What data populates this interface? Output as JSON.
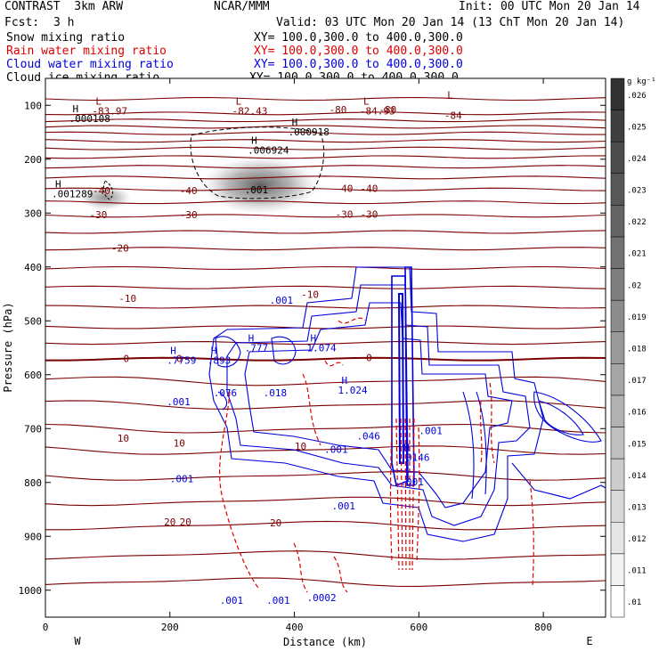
{
  "header": {
    "model": "CONTRAST  3km ARW",
    "center": "NCAR/MMM",
    "init": "Init: 00 UTC Mon 20 Jan 14",
    "fcst_label": "Fcst:",
    "fcst_value": "3 h",
    "valid": "Valid: 03 UTC Mon 20 Jan 14 (13 ChT Mon 20 Jan 14)",
    "legend": [
      {
        "text": "Snow mixing ratio",
        "xy": "XY= 100.0,300.0 to 400.0,300.0",
        "color": "#000000"
      },
      {
        "text": "Rain water mixing ratio",
        "xy": "XY= 100.0,300.0 to 400.0,300.0",
        "color": "#e00000"
      },
      {
        "text": "Cloud water mixing ratio",
        "xy": "XY= 100.0,300.0 to 400.0,300.0",
        "color": "#0000dd"
      },
      {
        "text": "Cloud ice mixing ratio",
        "xy": "XY= 100.0,300.0 to 400.0,300.0",
        "color": "#000000"
      }
    ]
  },
  "chart_data": {
    "type": "cross-section",
    "xlabel": "Distance (km)",
    "ylabel": "Pressure (hPa)",
    "xlim": [
      0,
      900
    ],
    "ylim": [
      1050,
      50
    ],
    "xticks": [
      0,
      200,
      400,
      600,
      800
    ],
    "yticks": [
      100,
      200,
      300,
      400,
      500,
      600,
      700,
      800,
      900,
      1000
    ],
    "endpoints": {
      "left": "W",
      "right": "E"
    },
    "colorbar": {
      "unit": "g kg⁻¹",
      "levels": [
        ".01",
        ".011",
        ".012",
        ".013",
        ".014",
        ".015",
        ".016",
        ".017",
        ".018",
        ".019",
        ".02",
        ".021",
        ".022",
        ".023",
        ".024",
        ".025",
        ".026"
      ]
    },
    "temperature_labels": [
      {
        "x": 470,
        "p": 108,
        "text": "-80"
      },
      {
        "x": 550,
        "p": 108,
        "text": "-80"
      },
      {
        "x": 655,
        "p": 119,
        "text": "-84"
      },
      {
        "x": 230,
        "p": 258,
        "text": "-40"
      },
      {
        "x": 480,
        "p": 254,
        "text": "-40"
      },
      {
        "x": 520,
        "p": 254,
        "text": "-40"
      },
      {
        "x": 90,
        "p": 258,
        "text": "-40"
      },
      {
        "x": 85,
        "p": 303,
        "text": "-30"
      },
      {
        "x": 230,
        "p": 303,
        "text": "-30"
      },
      {
        "x": 480,
        "p": 302,
        "text": "-30"
      },
      {
        "x": 520,
        "p": 302,
        "text": "-30"
      },
      {
        "x": 120,
        "p": 365,
        "text": "-20"
      },
      {
        "x": 132,
        "p": 458,
        "text": "-10"
      },
      {
        "x": 425,
        "p": 451,
        "text": "-10"
      },
      {
        "x": 130,
        "p": 570,
        "text": "0"
      },
      {
        "x": 215,
        "p": 570,
        "text": "0"
      },
      {
        "x": 520,
        "p": 568,
        "text": "0"
      },
      {
        "x": 125,
        "p": 718,
        "text": "10"
      },
      {
        "x": 215,
        "p": 727,
        "text": "10"
      },
      {
        "x": 410,
        "p": 733,
        "text": "10"
      },
      {
        "x": 200,
        "p": 873,
        "text": "20"
      },
      {
        "x": 225,
        "p": 873,
        "text": "20"
      },
      {
        "x": 370,
        "p": 875,
        "text": "20"
      }
    ],
    "temperature_levels_p": [
      88,
      115,
      128,
      140,
      152,
      166,
      180,
      196,
      214,
      234,
      256,
      280,
      305,
      335,
      366,
      402,
      438,
      474,
      512,
      541,
      571,
      612,
      656,
      700,
      740,
      788,
      835,
      880,
      935,
      985
    ],
    "extrema": [
      {
        "x": 75,
        "p": 112,
        "letter": "L",
        "value": "-83.97"
      },
      {
        "x": 300,
        "p": 112,
        "letter": "L",
        "value": "-82.43"
      },
      {
        "x": 505,
        "p": 112,
        "letter": "L",
        "value": "-84.93"
      },
      {
        "x": 640,
        "p": 100,
        "letter": "L",
        "value": ""
      },
      {
        "x": 38,
        "p": 126,
        "letter": "H",
        "value": ".000108"
      },
      {
        "x": 390,
        "p": 151,
        "letter": "H",
        "value": ".000918"
      },
      {
        "x": 325,
        "p": 185,
        "letter": "H",
        "value": ".006924"
      },
      {
        "x": 10,
        "p": 266,
        "letter": "H",
        "value": ".001289"
      },
      {
        "x": 320,
        "p": 258,
        "letter": "",
        "value": ".001"
      },
      {
        "x": 320,
        "p": 552,
        "letter": "H",
        "value": ".777"
      },
      {
        "x": 420,
        "p": 552,
        "letter": "H",
        "value": "1.074"
      },
      {
        "x": 195,
        "p": 575,
        "letter": "H",
        "value": ".7759"
      },
      {
        "x": 260,
        "p": 575,
        "letter": "H",
        "value": ".893"
      },
      {
        "x": 470,
        "p": 630,
        "letter": "H",
        "value": "1.024"
      },
      {
        "x": 570,
        "p": 755,
        "letter": "H",
        "value": ".0146"
      },
      {
        "x": 360,
        "p": 463,
        "letter": "",
        "value": ".001"
      },
      {
        "x": 195,
        "p": 652,
        "letter": "",
        "value": ".001"
      },
      {
        "x": 200,
        "p": 795,
        "letter": "",
        "value": ".001"
      },
      {
        "x": 448,
        "p": 740,
        "letter": "",
        "value": ".001"
      },
      {
        "x": 600,
        "p": 705,
        "letter": "",
        "value": ".001"
      },
      {
        "x": 570,
        "p": 800,
        "letter": "",
        "value": ".001"
      },
      {
        "x": 460,
        "p": 845,
        "letter": "",
        "value": ".001"
      },
      {
        "x": 280,
        "p": 1020,
        "letter": "",
        "value": ".001"
      },
      {
        "x": 355,
        "p": 1020,
        "letter": "",
        "value": ".001"
      },
      {
        "x": 420,
        "p": 1015,
        "letter": "",
        "value": ".0002"
      },
      {
        "x": 270,
        "p": 635,
        "letter": "",
        "value": ".076"
      },
      {
        "x": 350,
        "p": 635,
        "letter": "",
        "value": ".018"
      },
      {
        "x": 500,
        "p": 715,
        "letter": "",
        "value": ".046"
      }
    ]
  }
}
